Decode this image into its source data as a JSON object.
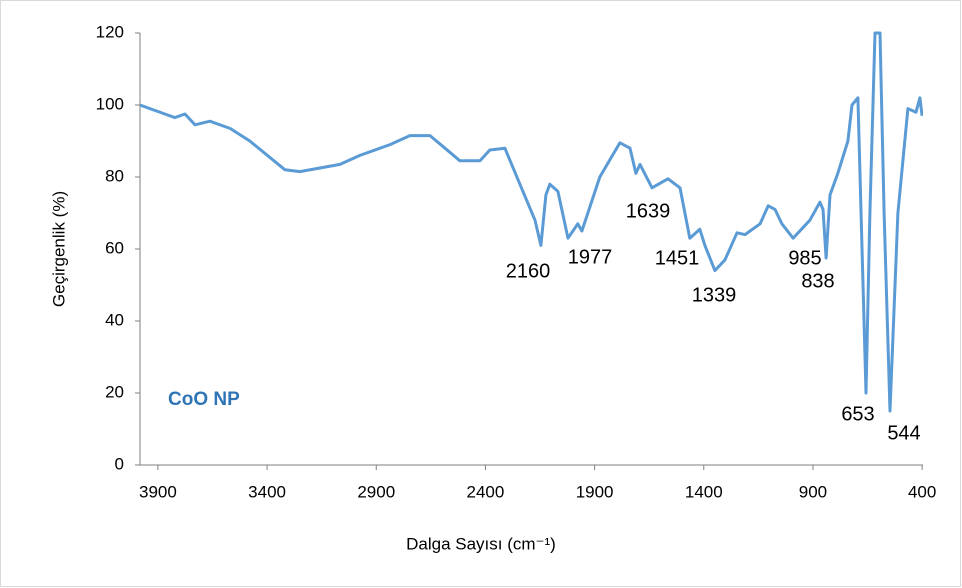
{
  "chart_data": {
    "type": "line",
    "xlabel": "Dalga Sayısı (cm⁻¹)",
    "ylabel": "Geçirgenlik (%)",
    "xlim": [
      3982,
      396
    ],
    "ylim": [
      0,
      120
    ],
    "xticks": [
      3900,
      3400,
      2900,
      2400,
      1900,
      1400,
      900,
      400
    ],
    "yticks": [
      0,
      20,
      40,
      60,
      80,
      100,
      120
    ],
    "series": [
      {
        "name": "CoO NP",
        "color": "#5b9bd5",
        "x": [
          3982,
          3822,
          3776,
          3730,
          3662,
          3570,
          3479,
          3318,
          3250,
          3066,
          2975,
          2837,
          2746,
          2654,
          2585,
          2517,
          2425,
          2380,
          2311,
          2242,
          2173,
          2146,
          2123,
          2105,
          2068,
          2022,
          1977,
          1958,
          1876,
          1784,
          1738,
          1711,
          1692,
          1637,
          1564,
          1509,
          1464,
          1418,
          1395,
          1349,
          1303,
          1248,
          1211,
          1142,
          1105,
          1074,
          1042,
          991,
          914,
          868,
          854,
          840,
          822,
          786,
          740,
          721,
          694,
          657,
          639,
          616,
          593,
          574,
          547,
          511,
          465,
          428,
          410,
          400
        ],
        "values": [
          100,
          96.5,
          97.5,
          94.5,
          95.5,
          93.5,
          90,
          82,
          81.5,
          83.5,
          86,
          89,
          91.5,
          91.5,
          88,
          84.5,
          84.5,
          87.5,
          88,
          78,
          68,
          61,
          75,
          78,
          76,
          63,
          67,
          65,
          80,
          89.5,
          88,
          81,
          83.5,
          77,
          79.5,
          77,
          63,
          65.5,
          61,
          54,
          57,
          64.5,
          64,
          67,
          72,
          71,
          67,
          63,
          68,
          73,
          71,
          57.5,
          75,
          81,
          90,
          100,
          102,
          20,
          70,
          120,
          120,
          70,
          15,
          70,
          99,
          98,
          102,
          97
        ]
      }
    ],
    "annotations": [
      "2160",
      "1977",
      "1639",
      "1451",
      "1339",
      "985",
      "838",
      "653",
      "544"
    ]
  }
}
